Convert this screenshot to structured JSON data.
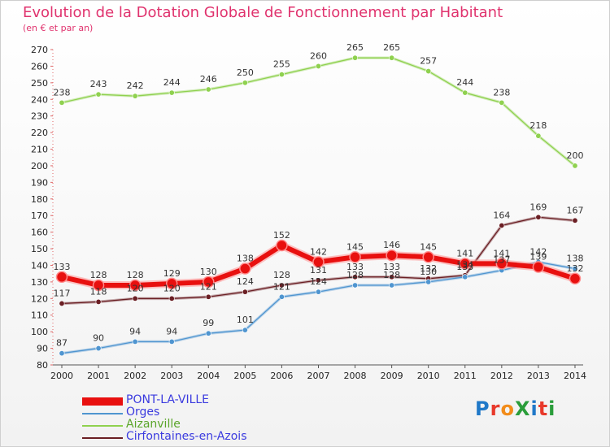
{
  "title": "Evolution de la Dotation Globale de Fonctionnement par Habitant",
  "subtitle": "(en € et par an)",
  "logo": {
    "text": "ProXiti",
    "colors": [
      "#1f78c8",
      "#e8392b",
      "#f28c1a",
      "#2a9d3a",
      "#1f78c8",
      "#e8392b",
      "#2a9d3a"
    ]
  },
  "chart_data": {
    "type": "line",
    "x": [
      "2000",
      "2001",
      "2002",
      "2003",
      "2004",
      "2005",
      "2006",
      "2007",
      "2008",
      "2009",
      "2010",
      "2011",
      "2012",
      "2013",
      "2014"
    ],
    "ylim": [
      80,
      270
    ],
    "yticks": [
      80,
      90,
      100,
      110,
      120,
      130,
      140,
      150,
      160,
      170,
      180,
      190,
      200,
      210,
      220,
      230,
      240,
      250,
      260,
      270
    ],
    "grid": false,
    "legend": "bottom-left",
    "series": [
      {
        "name": "Aizanville",
        "color": "#8fd14f",
        "values": [
          238,
          243,
          242,
          244,
          246,
          250,
          255,
          260,
          265,
          265,
          257,
          244,
          238,
          218,
          200
        ],
        "labels": [
          "238",
          "243",
          "242",
          "244",
          "246",
          "250",
          "255",
          "260",
          "265",
          "265",
          "257",
          "244",
          "238",
          "218",
          "200"
        ]
      },
      {
        "name": "Cirfontaines-en-Azois",
        "color": "#6b1f24",
        "values": [
          117,
          118,
          120,
          120,
          121,
          124,
          128,
          131,
          133,
          133,
          132,
          134,
          164,
          169,
          167
        ],
        "labels": [
          "117",
          "118",
          "120",
          "120",
          "121",
          "124",
          "128",
          "131",
          "133",
          "133",
          "132",
          "134",
          "164",
          "169",
          "167"
        ]
      },
      {
        "name": "Orges",
        "color": "#4f95d0",
        "values": [
          87,
          90,
          94,
          94,
          99,
          101,
          121,
          124,
          128,
          128,
          130,
          133,
          137,
          142,
          138
        ],
        "labels": [
          "87",
          "90",
          "94",
          "94",
          "99",
          "101",
          "121",
          "124",
          "128",
          "128",
          "130",
          "133",
          "137",
          "142",
          "138"
        ]
      },
      {
        "name": "PONT-LA-VILLE",
        "color": "#e8100f",
        "values": [
          133,
          128,
          128,
          129,
          130,
          138,
          152,
          142,
          145,
          146,
          145,
          141,
          141,
          139,
          132
        ],
        "labels": [
          "133",
          "128",
          "128",
          "129",
          "130",
          "138",
          "152",
          "142",
          "145",
          "146",
          "145",
          "141",
          "141",
          "139",
          "132"
        ]
      }
    ]
  }
}
